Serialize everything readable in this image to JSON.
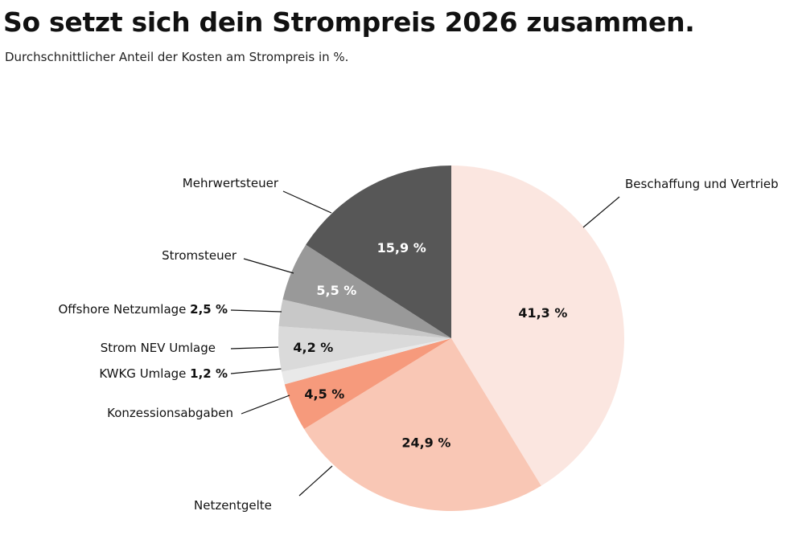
{
  "chart_data": {
    "type": "pie",
    "title": "So setzt sich dein Strompreis 2026 zusammen.",
    "subtitle": "Durchschnittlicher Anteil der Kosten am Strompreis in %.",
    "start": "top",
    "direction": "clockwise",
    "slices": [
      {
        "name": "Beschaffung und Vertrieb",
        "value": 41.3,
        "label": "41,3 %",
        "color": "#fbe6e0",
        "text_color": "#111"
      },
      {
        "name": "Netzentgelte",
        "value": 24.9,
        "label": "24,9 %",
        "color": "#f9c7b5",
        "text_color": "#111"
      },
      {
        "name": "Konzessionsabgaben",
        "value": 4.5,
        "label": "4,5 %",
        "color": "#f69a7c",
        "text_color": "#111"
      },
      {
        "name": "KWKG Umlage",
        "value": 1.2,
        "label": "1,2 %",
        "color": "#e9e9e9",
        "text_color": "#111"
      },
      {
        "name": "Strom NEV Umlage",
        "value": 4.2,
        "label": "4,2 %",
        "color": "#dadada",
        "text_color": "#111"
      },
      {
        "name": "Offshore Netzumlage",
        "value": 2.5,
        "label": "2,5 %",
        "color": "#c8c8c8",
        "text_color": "#111"
      },
      {
        "name": "Stromsteuer",
        "value": 5.5,
        "label": "5,5 %",
        "color": "#999999",
        "text_color": "#fff"
      },
      {
        "name": "Mehrwertsteuer",
        "value": 15.9,
        "label": "15,9 %",
        "color": "#575757",
        "text_color": "#fff"
      }
    ]
  }
}
